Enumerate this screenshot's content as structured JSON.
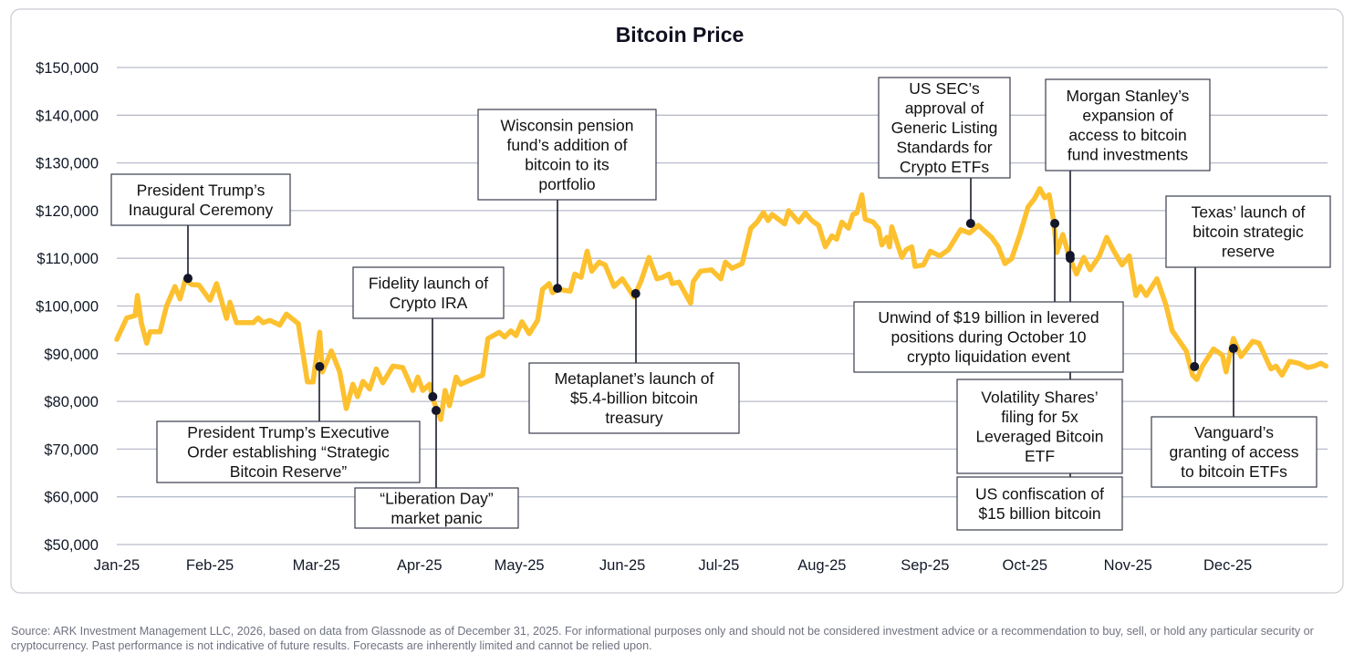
{
  "chart_data": {
    "type": "line",
    "title": "Bitcoin Price",
    "xlabel": "",
    "ylabel": "",
    "x_unit": "day of year 2025 (0 = Jan 1)",
    "xlim": [
      0,
      364
    ],
    "ylim": [
      50000,
      150000
    ],
    "grid": true,
    "y_ticks": [
      {
        "value": 150000,
        "label": "$150,000"
      },
      {
        "value": 140000,
        "label": "$140,000"
      },
      {
        "value": 130000,
        "label": "$130,000"
      },
      {
        "value": 120000,
        "label": "$120,000"
      },
      {
        "value": 110000,
        "label": "$110,000"
      },
      {
        "value": 100000,
        "label": "$100,000"
      },
      {
        "value": 90000,
        "label": "$90,000"
      },
      {
        "value": 80000,
        "label": "$80,000"
      },
      {
        "value": 70000,
        "label": "$70,000"
      },
      {
        "value": 60000,
        "label": "$60,000"
      },
      {
        "value": 50000,
        "label": "$50,000"
      }
    ],
    "x_ticks": [
      {
        "day": 0,
        "label": "Jan-25"
      },
      {
        "day": 28,
        "label": "Feb-25"
      },
      {
        "day": 60,
        "label": "Mar-25"
      },
      {
        "day": 91,
        "label": "Apr-25"
      },
      {
        "day": 121,
        "label": "May-25"
      },
      {
        "day": 152,
        "label": "Jun-25"
      },
      {
        "day": 181,
        "label": "Jul-25"
      },
      {
        "day": 212,
        "label": "Aug-25"
      },
      {
        "day": 243,
        "label": "Sep-25"
      },
      {
        "day": 273,
        "label": "Oct-25"
      },
      {
        "day": 304,
        "label": "Nov-25"
      },
      {
        "day": 334,
        "label": "Dec-25"
      }
    ],
    "series": [
      {
        "name": "Bitcoin Price",
        "color": "#fdc02f",
        "points": [
          [
            0,
            93000
          ],
          [
            3,
            97500
          ],
          [
            5.5,
            98000
          ],
          [
            6.2,
            102200
          ],
          [
            7.4,
            96400
          ],
          [
            9,
            92200
          ],
          [
            10,
            94600
          ],
          [
            13,
            94600
          ],
          [
            15,
            100100
          ],
          [
            17.5,
            104100
          ],
          [
            19,
            101500
          ],
          [
            20.6,
            105500
          ],
          [
            22.5,
            104500
          ],
          [
            24.7,
            104400
          ],
          [
            28,
            101200
          ],
          [
            30,
            104700
          ],
          [
            33,
            97400
          ],
          [
            34,
            100800
          ],
          [
            36,
            96500
          ],
          [
            41,
            96500
          ],
          [
            42.5,
            97500
          ],
          [
            44,
            96500
          ],
          [
            46,
            97000
          ],
          [
            49,
            96000
          ],
          [
            51,
            98300
          ],
          [
            54.6,
            96300
          ],
          [
            57.3,
            84100
          ],
          [
            59,
            84100
          ],
          [
            61,
            94500
          ],
          [
            61.8,
            86200
          ],
          [
            64.5,
            90600
          ],
          [
            67,
            86200
          ],
          [
            69,
            78500
          ],
          [
            71,
            83600
          ],
          [
            72.4,
            81000
          ],
          [
            74,
            84200
          ],
          [
            76,
            82600
          ],
          [
            78,
            86800
          ],
          [
            80,
            83900
          ],
          [
            83,
            87400
          ],
          [
            86,
            87100
          ],
          [
            89,
            82300
          ],
          [
            90.5,
            85100
          ],
          [
            92,
            82300
          ],
          [
            94,
            83600
          ],
          [
            95,
            80600
          ],
          [
            97.4,
            76200
          ],
          [
            98.7,
            82300
          ],
          [
            100,
            79100
          ],
          [
            102,
            85100
          ],
          [
            103.4,
            83600
          ],
          [
            106.7,
            84600
          ],
          [
            110,
            85500
          ],
          [
            111.6,
            93200
          ],
          [
            115,
            94500
          ],
          [
            116.6,
            93500
          ],
          [
            118.5,
            94800
          ],
          [
            120,
            93800
          ],
          [
            121.8,
            96700
          ],
          [
            124,
            94200
          ],
          [
            126.5,
            97000
          ],
          [
            128,
            103500
          ],
          [
            130,
            104700
          ],
          [
            131,
            102800
          ],
          [
            132.7,
            103500
          ],
          [
            136.3,
            103100
          ],
          [
            137.7,
            106700
          ],
          [
            139.6,
            106000
          ],
          [
            141.4,
            111500
          ],
          [
            142.8,
            107300
          ],
          [
            145,
            109200
          ],
          [
            146.8,
            108600
          ],
          [
            149.5,
            104100
          ],
          [
            152,
            105700
          ],
          [
            155.5,
            101900
          ],
          [
            157.7,
            105400
          ],
          [
            160,
            110200
          ],
          [
            162.4,
            105700
          ],
          [
            164,
            106000
          ],
          [
            166,
            106700
          ],
          [
            167,
            104700
          ],
          [
            169,
            105000
          ],
          [
            172.5,
            100600
          ],
          [
            173.3,
            105100
          ],
          [
            175.5,
            107300
          ],
          [
            178.8,
            107600
          ],
          [
            181.6,
            105700
          ],
          [
            183,
            109200
          ],
          [
            185,
            107900
          ],
          [
            188,
            108900
          ],
          [
            190.6,
            116300
          ],
          [
            192.5,
            117600
          ],
          [
            194.4,
            119600
          ],
          [
            195.8,
            117900
          ],
          [
            197,
            119200
          ],
          [
            200.8,
            117200
          ],
          [
            202,
            120000
          ],
          [
            205,
            117600
          ],
          [
            207,
            119500
          ],
          [
            209,
            117900
          ],
          [
            211,
            116900
          ],
          [
            213,
            112400
          ],
          [
            215,
            114700
          ],
          [
            216.4,
            114000
          ],
          [
            218,
            117600
          ],
          [
            220,
            116300
          ],
          [
            221.3,
            119200
          ],
          [
            222.5,
            119500
          ],
          [
            224,
            123300
          ],
          [
            225,
            118200
          ],
          [
            227.4,
            117600
          ],
          [
            229,
            116300
          ],
          [
            230,
            112800
          ],
          [
            231.5,
            114400
          ],
          [
            232.3,
            112400
          ],
          [
            233,
            116600
          ],
          [
            236,
            110200
          ],
          [
            237.3,
            111800
          ],
          [
            239,
            112400
          ],
          [
            240,
            108300
          ],
          [
            242.5,
            108600
          ],
          [
            244.6,
            111500
          ],
          [
            247.4,
            110500
          ],
          [
            250,
            111800
          ],
          [
            253.7,
            116000
          ],
          [
            256.4,
            115300
          ],
          [
            259,
            116900
          ],
          [
            263,
            114400
          ],
          [
            265,
            112400
          ],
          [
            267,
            108900
          ],
          [
            269,
            109900
          ],
          [
            271.5,
            115000
          ],
          [
            274,
            120800
          ],
          [
            275.8,
            122400
          ],
          [
            277.5,
            124600
          ],
          [
            279,
            122700
          ],
          [
            280.3,
            123300
          ],
          [
            281.7,
            117600
          ],
          [
            282.6,
            111200
          ],
          [
            284.4,
            115000
          ],
          [
            286.3,
            110500
          ],
          [
            288.5,
            106700
          ],
          [
            290.7,
            110200
          ],
          [
            292.6,
            107600
          ],
          [
            295.4,
            110500
          ],
          [
            297.6,
            114400
          ],
          [
            300,
            111200
          ],
          [
            302.2,
            108600
          ],
          [
            304.4,
            110500
          ],
          [
            306.4,
            102200
          ],
          [
            307.7,
            104100
          ],
          [
            309.5,
            102200
          ],
          [
            312.7,
            105700
          ],
          [
            315.4,
            100300
          ],
          [
            317.3,
            94800
          ],
          [
            319.5,
            92600
          ],
          [
            321.5,
            90600
          ],
          [
            323.4,
            85500
          ],
          [
            324.7,
            84600
          ],
          [
            326.4,
            87400
          ],
          [
            329.7,
            91000
          ],
          [
            332.4,
            89700
          ],
          [
            333.5,
            86200
          ],
          [
            335.7,
            93200
          ],
          [
            338,
            89400
          ],
          [
            341.5,
            92600
          ],
          [
            343.4,
            92200
          ],
          [
            347,
            86800
          ],
          [
            348.5,
            87400
          ],
          [
            350.3,
            85500
          ],
          [
            352.6,
            88400
          ],
          [
            355.4,
            88000
          ],
          [
            358,
            87100
          ],
          [
            360,
            87400
          ],
          [
            362,
            88000
          ],
          [
            363.5,
            87400
          ]
        ]
      }
    ],
    "annotations": [
      {
        "id": "inaugural",
        "day": 21.4,
        "price": 105800,
        "lines": [
          "President Trump’s",
          "Inaugural Ceremony"
        ]
      },
      {
        "id": "executive-order",
        "day": 61,
        "price": 87300,
        "lines": [
          "President Trump’s Executive",
          "Order establishing “Strategic",
          "Bitcoin Reserve”"
        ]
      },
      {
        "id": "fidelity",
        "day": 95,
        "price": 81000,
        "lines": [
          "Fidelity launch of",
          "Crypto IRA"
        ]
      },
      {
        "id": "liberation-day",
        "day": 96,
        "price": 78100,
        "lines": [
          "“Liberation Day”",
          "market panic"
        ]
      },
      {
        "id": "wisconsin",
        "day": 132.5,
        "price": 103700,
        "lines": [
          "Wisconsin pension",
          "fund’s addition of",
          "bitcoin to its",
          "portfolio"
        ]
      },
      {
        "id": "metaplanet",
        "day": 156,
        "price": 102600,
        "lines": [
          "Metaplanet’s launch of",
          "$5.4-billion bitcoin",
          "treasury"
        ]
      },
      {
        "id": "sec",
        "day": 256.7,
        "price": 117300,
        "lines": [
          "US SEC’s",
          "approval of",
          "Generic Listing",
          "Standards for",
          "Crypto ETFs"
        ]
      },
      {
        "id": "morgan-stanley",
        "day": 286.6,
        "price": 110600,
        "lines": [
          "Morgan Stanley’s",
          "expansion of",
          "access to bitcoin",
          "fund investments"
        ]
      },
      {
        "id": "unwind",
        "day": 282,
        "price": 117300,
        "lines": [
          "Unwind of $19 billion in levered",
          "positions during October 10",
          "crypto liquidation event"
        ]
      },
      {
        "id": "volatility-shares",
        "day": 286.6,
        "price": 110000,
        "lines": [
          "Volatility Shares’",
          "filing for 5x",
          "Leveraged Bitcoin",
          "ETF"
        ]
      },
      {
        "id": "confiscation",
        "day": 286.6,
        "price": 110000,
        "lines": [
          "US confiscation of",
          "$15 billion bitcoin"
        ]
      },
      {
        "id": "texas",
        "day": 324,
        "price": 87300,
        "lines": [
          "Texas’ launch of",
          "bitcoin strategic",
          "reserve"
        ]
      },
      {
        "id": "vanguard",
        "day": 335.7,
        "price": 91100,
        "lines": [
          "Vanguard’s",
          "granting of access",
          "to bitcoin ETFs"
        ]
      }
    ]
  },
  "footer": {
    "source": "Source: ARK Investment Management LLC, 2026, based on data from Glassnode as of December 31, 2025. For informational purposes only and should not be considered investment advice or a recommendation to buy, sell, or hold any particular security or cryptocurrency. Past performance is not indicative of future results. Forecasts are inherently limited and cannot be relied upon."
  }
}
